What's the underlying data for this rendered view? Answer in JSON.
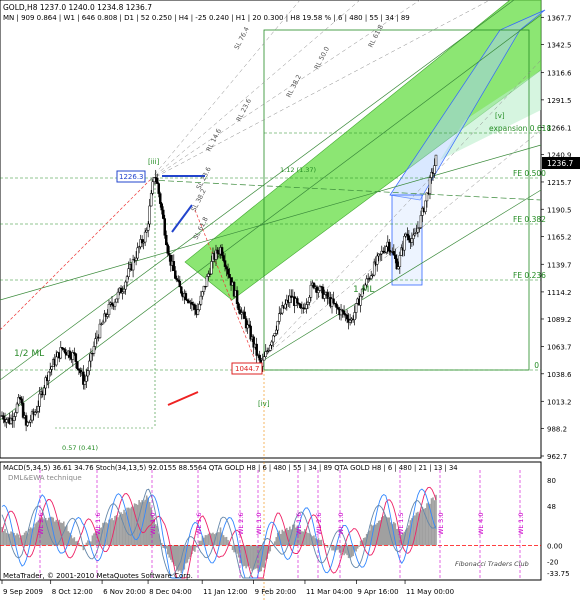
{
  "window": {
    "symbol_line": "GOLD,H8  1237.0  1240.0  1234.8  1236.7",
    "tf_stats": "MN | 909  0.864 | W1 | 646  0.808 | D1 | 52  0.250 | H4 | -25  0.240 | H1 | 20  0.300 | H8 19.58 % | 6 | 480 | 55 | 34 | 89",
    "copyright": "MetaTrader, © 2001-2010 MetaQuotes Software Corp.",
    "watermark": "Fibonacci Traders Club"
  },
  "indicator_header": "MACD(5,34,5) 36.61 34.76  Stoch(34,13,5) 92.0155 88.5564  QTA GOLD H8 | 6 | 480 | 55 | 34 | 89  QTA GOLD H8 | 6 | 480 | 21 | 13 | 34",
  "indicator_subtitle": "DML&EWA technique",
  "colors": {
    "up_candle": "#000000",
    "channel_fill": "#66dd44",
    "channel_fill_light": "#aaeebb",
    "fork_lines": "#3a8a3a",
    "blue_lines": "#3366ff",
    "price_tag": "#000000",
    "support_red": "#ee2222",
    "fib_green": "#228b22",
    "magenta_vertical": "#cc00cc",
    "macd_hist": "#a0a0a0",
    "stoch_main": "#ee2266",
    "stoch_signal": "#3388ff"
  },
  "annotations": {
    "wave_iii": "[iii]",
    "wave_iv": "[iv]",
    "wave_v": "[v]",
    "half_ml": "1/2 ML",
    "one_ml": "1 ML",
    "top_price_box": "1226.3",
    "bottom_price_box": "1044.7",
    "expansion": "expansion 0.618",
    "fe_0500": "FE 0.500",
    "fe_0382": "FE 0.382",
    "fe_0236": "FE 0.236",
    "fib_zero": "0",
    "ratio_left": "0.57 (0.41)",
    "ratio_mid": "1.12 (1.37)",
    "current_price": "1236.7",
    "fork_labels": [
      "RL 61.8",
      "RL 50.0",
      "RL 38.2",
      "RL 23.6",
      "RL 14.6",
      "SL 23.6",
      "SL 38.2",
      "SL 61.8",
      "SL 76.4"
    ],
    "vertical_labels": [
      "WL 2.6",
      "WL 1.6",
      "WL 1.0",
      "WL 1.6",
      "WL 2.6",
      "WL 1.0",
      "WL 1.6",
      "WL 2.6",
      "WL 1.0",
      "WL 1.5",
      "WL 3.0",
      "WL 4.0",
      "WL 1.0"
    ]
  },
  "chart_data": {
    "type": "candlestick",
    "title": "GOLD,H8",
    "price_axis_ticks": [
      "1367.7",
      "1342.5",
      "1316.6",
      "1291.5",
      "1266.1",
      "1240.9",
      "1215.7",
      "1190.5",
      "1165.2",
      "1139.7",
      "1114.2",
      "1089.2",
      "1063.7",
      "1038.6",
      "1013.2",
      "988.2",
      "962.7"
    ],
    "price_range": [
      962.7,
      1380.0
    ],
    "time_axis_labels": [
      "9 Sep 2009",
      "8 Oct 12:00",
      "6 Nov 20:00",
      "8 Dec 04:00",
      "11 Jan 12:00",
      "9 Feb 20:00",
      "11 Mar 04:00",
      "9 Apr 16:00",
      "11 May 00:00"
    ],
    "price_path": [
      {
        "i": 0,
        "p": 1000
      },
      {
        "i": 8,
        "p": 995
      },
      {
        "i": 18,
        "p": 1015
      },
      {
        "i": 24,
        "p": 990
      },
      {
        "i": 34,
        "p": 1005
      },
      {
        "i": 46,
        "p": 1040
      },
      {
        "i": 60,
        "p": 1062
      },
      {
        "i": 72,
        "p": 1055
      },
      {
        "i": 82,
        "p": 1030
      },
      {
        "i": 94,
        "p": 1072
      },
      {
        "i": 106,
        "p": 1098
      },
      {
        "i": 120,
        "p": 1118
      },
      {
        "i": 134,
        "p": 1150
      },
      {
        "i": 144,
        "p": 1170
      },
      {
        "i": 152,
        "p": 1226
      },
      {
        "i": 158,
        "p": 1195
      },
      {
        "i": 166,
        "p": 1148
      },
      {
        "i": 176,
        "p": 1118
      },
      {
        "i": 186,
        "p": 1108
      },
      {
        "i": 194,
        "p": 1095
      },
      {
        "i": 202,
        "p": 1120
      },
      {
        "i": 210,
        "p": 1145
      },
      {
        "i": 218,
        "p": 1155
      },
      {
        "i": 226,
        "p": 1130
      },
      {
        "i": 236,
        "p": 1100
      },
      {
        "i": 246,
        "p": 1078
      },
      {
        "i": 258,
        "p": 1045
      },
      {
        "i": 268,
        "p": 1070
      },
      {
        "i": 278,
        "p": 1096
      },
      {
        "i": 288,
        "p": 1110
      },
      {
        "i": 298,
        "p": 1095
      },
      {
        "i": 310,
        "p": 1122
      },
      {
        "i": 322,
        "p": 1110
      },
      {
        "i": 334,
        "p": 1098
      },
      {
        "i": 348,
        "p": 1088
      },
      {
        "i": 360,
        "p": 1118
      },
      {
        "i": 372,
        "p": 1140
      },
      {
        "i": 384,
        "p": 1160
      },
      {
        "i": 394,
        "p": 1138
      },
      {
        "i": 402,
        "p": 1168
      },
      {
        "i": 410,
        "p": 1162
      },
      {
        "i": 418,
        "p": 1185
      },
      {
        "i": 426,
        "p": 1215
      },
      {
        "i": 432,
        "p": 1237
      }
    ],
    "macd_path": [
      {
        "i": 0,
        "v": 20
      },
      {
        "i": 20,
        "v": 10
      },
      {
        "i": 40,
        "v": 35
      },
      {
        "i": 60,
        "v": 30
      },
      {
        "i": 80,
        "v": -5
      },
      {
        "i": 100,
        "v": 25
      },
      {
        "i": 120,
        "v": 40
      },
      {
        "i": 145,
        "v": 60
      },
      {
        "i": 160,
        "v": 0
      },
      {
        "i": 178,
        "v": -35
      },
      {
        "i": 200,
        "v": 10
      },
      {
        "i": 218,
        "v": 20
      },
      {
        "i": 240,
        "v": -25
      },
      {
        "i": 258,
        "v": -33
      },
      {
        "i": 275,
        "v": 15
      },
      {
        "i": 292,
        "v": 25
      },
      {
        "i": 310,
        "v": 10
      },
      {
        "i": 330,
        "v": -5
      },
      {
        "i": 348,
        "v": -15
      },
      {
        "i": 365,
        "v": 20
      },
      {
        "i": 382,
        "v": 38
      },
      {
        "i": 398,
        "v": 15
      },
      {
        "i": 414,
        "v": 40
      },
      {
        "i": 432,
        "v": 60
      }
    ],
    "macd_axis_ticks": [
      "80",
      "48",
      "0.00",
      "-20",
      "-33.75"
    ],
    "macd_range": [
      -40,
      90
    ]
  }
}
